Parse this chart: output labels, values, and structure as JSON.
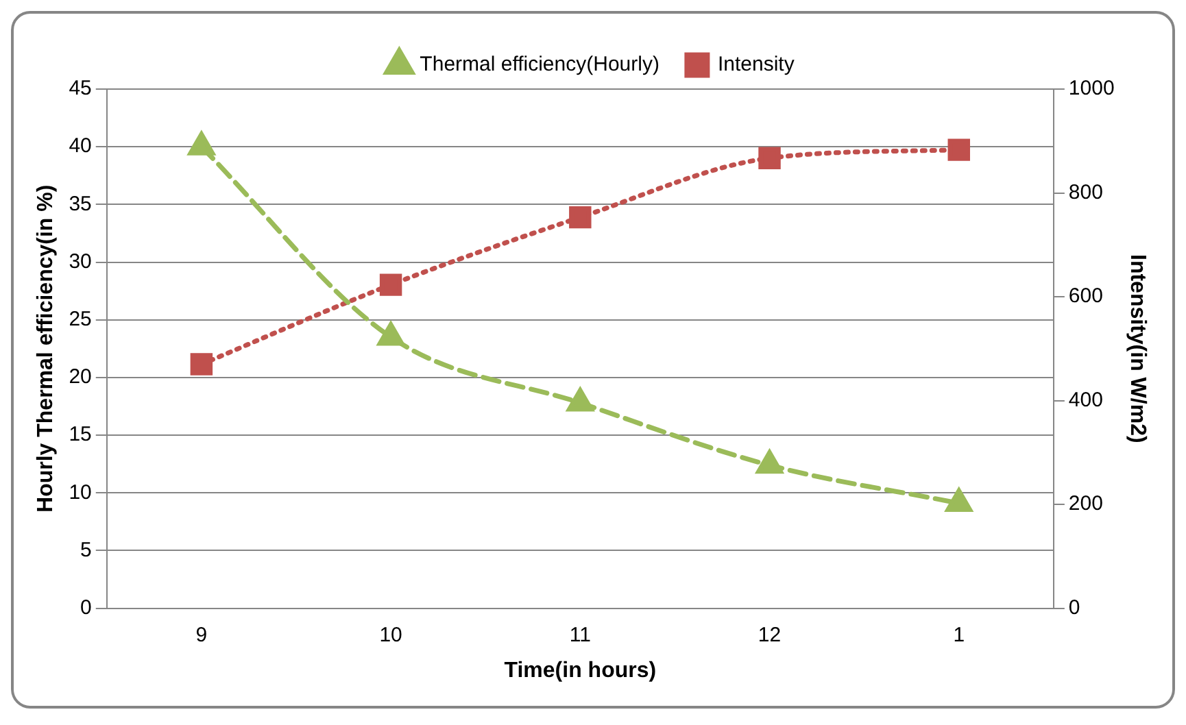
{
  "chart_data": {
    "type": "line",
    "xlabel": "Time(in hours)",
    "ylabel": "Hourly Thermal efficiency(in %)",
    "y2label": "Intensity(in W/m2)",
    "categories": [
      "9",
      "10",
      "11",
      "12",
      "1"
    ],
    "series": [
      {
        "name": "Thermal efficiency(Hourly)",
        "color": "#9bbb59",
        "values": [
          40,
          23.5,
          17.8,
          12.4,
          9.1
        ],
        "marker": "triangle",
        "line_style": "dashed"
      },
      {
        "name": "Intensity",
        "color": "#c0504d",
        "values": [
          470,
          623,
          753,
          867,
          883
        ],
        "axis": "y2",
        "marker": "square",
        "line_style": "dotted"
      }
    ],
    "ylim": [
      0,
      45
    ],
    "yticks": [
      0,
      5,
      10,
      15,
      20,
      25,
      30,
      35,
      40,
      45
    ],
    "y2lim": [
      0,
      1000
    ],
    "y2ticks": [
      0,
      200,
      400,
      600,
      800,
      1000
    ],
    "grid": "y",
    "legend": "top"
  }
}
